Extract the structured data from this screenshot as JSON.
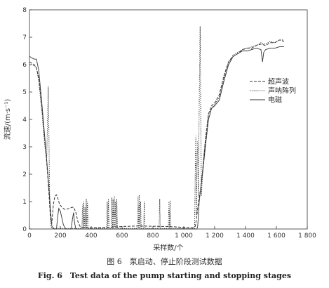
{
  "caption": {
    "cn": "图 6　泵启动、停止阶段测试数据",
    "en": "Fig. 6　Test data of the pump starting and stopping stages"
  },
  "chart_data": {
    "type": "line",
    "title": "",
    "xlabel": "采样数/个",
    "ylabel": "流速/(m·s⁻¹)",
    "xlim": [
      0,
      1800
    ],
    "ylim": [
      0,
      8
    ],
    "x_ticks": [
      0,
      200,
      400,
      600,
      800,
      1000,
      1200,
      1400,
      1600,
      1800
    ],
    "y_ticks": [
      0,
      1,
      2,
      3,
      4,
      5,
      6,
      7,
      8
    ],
    "x_tick_labels": [
      "0",
      "200",
      "400",
      "600",
      "800",
      "1 000",
      "1 200",
      "1 400",
      "1 600",
      "1 800"
    ],
    "y_tick_labels": [
      "0",
      "1",
      "2",
      "3",
      "4",
      "5",
      "6",
      "7",
      "8"
    ],
    "grid": false,
    "legend_position": "right",
    "series": [
      {
        "name": "超声波",
        "style": "dashed",
        "points": [
          [
            0,
            6.1
          ],
          [
            15,
            6.05
          ],
          [
            30,
            6.0
          ],
          [
            45,
            5.9
          ],
          [
            60,
            5.5
          ],
          [
            80,
            4.5
          ],
          [
            100,
            3.2
          ],
          [
            115,
            2.2
          ],
          [
            125,
            1.4
          ],
          [
            135,
            0.5
          ],
          [
            145,
            0.2
          ],
          [
            155,
            0.9
          ],
          [
            165,
            1.2
          ],
          [
            175,
            1.25
          ],
          [
            185,
            1.1
          ],
          [
            195,
            0.9
          ],
          [
            210,
            0.8
          ],
          [
            225,
            0.72
          ],
          [
            235,
            0.72
          ],
          [
            255,
            0.75
          ],
          [
            270,
            0.78
          ],
          [
            285,
            0.8
          ],
          [
            300,
            0.62
          ],
          [
            315,
            0.25
          ],
          [
            330,
            0.07
          ],
          [
            350,
            0.05
          ],
          [
            400,
            0.05
          ],
          [
            500,
            0.06
          ],
          [
            600,
            0.09
          ],
          [
            700,
            0.11
          ],
          [
            800,
            0.1
          ],
          [
            900,
            0.09
          ],
          [
            1000,
            0.06
          ],
          [
            1060,
            0.05
          ],
          [
            1075,
            0.1
          ],
          [
            1085,
            0.5
          ],
          [
            1095,
            1.0
          ],
          [
            1110,
            1.5
          ],
          [
            1125,
            2.3
          ],
          [
            1140,
            3.2
          ],
          [
            1160,
            4.2
          ],
          [
            1180,
            4.5
          ],
          [
            1200,
            4.6
          ],
          [
            1230,
            4.9
          ],
          [
            1260,
            5.6
          ],
          [
            1290,
            6.1
          ],
          [
            1320,
            6.3
          ],
          [
            1350,
            6.4
          ],
          [
            1380,
            6.55
          ],
          [
            1410,
            6.6
          ],
          [
            1440,
            6.6
          ],
          [
            1470,
            6.7
          ],
          [
            1500,
            6.75
          ],
          [
            1530,
            6.7
          ],
          [
            1560,
            6.8
          ],
          [
            1590,
            6.8
          ],
          [
            1620,
            6.9
          ],
          [
            1650,
            6.85
          ]
        ]
      },
      {
        "name": "声呐阵列",
        "style": "dotted",
        "points": [
          [
            0,
            6.0
          ],
          [
            15,
            6.0
          ],
          [
            30,
            5.95
          ],
          [
            45,
            5.9
          ],
          [
            60,
            5.4
          ],
          [
            80,
            4.3
          ],
          [
            100,
            3.0
          ],
          [
            112,
            2.6
          ],
          [
            118,
            4.2
          ],
          [
            122,
            5.2
          ],
          [
            126,
            3.5
          ],
          [
            130,
            1.5
          ],
          [
            136,
            0.1
          ],
          [
            150,
            0.02
          ],
          [
            340,
            0.02
          ],
          [
            344,
            0.9
          ],
          [
            348,
            0.02
          ],
          [
            352,
            1.0
          ],
          [
            356,
            0.02
          ],
          [
            360,
            0.8
          ],
          [
            364,
            0.02
          ],
          [
            368,
            1.1
          ],
          [
            372,
            0.02
          ],
          [
            376,
            1.0
          ],
          [
            380,
            0.02
          ],
          [
            500,
            0.02
          ],
          [
            504,
            1.0
          ],
          [
            508,
            0.02
          ],
          [
            512,
            1.1
          ],
          [
            516,
            0.02
          ],
          [
            530,
            0.02
          ],
          [
            534,
            1.15
          ],
          [
            538,
            0.02
          ],
          [
            542,
            1.1
          ],
          [
            546,
            0.02
          ],
          [
            550,
            1.2
          ],
          [
            554,
            0.02
          ],
          [
            558,
            1.0
          ],
          [
            562,
            0.02
          ],
          [
            566,
            1.1
          ],
          [
            570,
            0.02
          ],
          [
            700,
            0.02
          ],
          [
            704,
            1.2
          ],
          [
            708,
            0.02
          ],
          [
            712,
            1.25
          ],
          [
            716,
            0.02
          ],
          [
            720,
            1.0
          ],
          [
            724,
            0.02
          ],
          [
            740,
            0.02
          ],
          [
            744,
            1.0
          ],
          [
            748,
            0.02
          ],
          [
            840,
            0.02
          ],
          [
            844,
            1.1
          ],
          [
            848,
            0.02
          ],
          [
            900,
            0.02
          ],
          [
            904,
            1.0
          ],
          [
            908,
            0.02
          ],
          [
            912,
            1.05
          ],
          [
            916,
            0.02
          ],
          [
            1070,
            0.02
          ],
          [
            1074,
            2.0
          ],
          [
            1078,
            3.4
          ],
          [
            1082,
            0.5
          ],
          [
            1086,
            2.5
          ],
          [
            1090,
            3.2
          ],
          [
            1094,
            1.2
          ],
          [
            1098,
            3.6
          ],
          [
            1102,
            5.5
          ],
          [
            1106,
            7.4
          ],
          [
            1110,
            4.0
          ],
          [
            1114,
            1.2
          ],
          [
            1125,
            2.4
          ],
          [
            1140,
            3.3
          ],
          [
            1160,
            4.2
          ],
          [
            1180,
            4.4
          ],
          [
            1200,
            4.55
          ],
          [
            1230,
            4.8
          ],
          [
            1260,
            5.5
          ],
          [
            1290,
            6.1
          ],
          [
            1320,
            6.35
          ],
          [
            1350,
            6.45
          ],
          [
            1380,
            6.55
          ],
          [
            1410,
            6.6
          ],
          [
            1440,
            6.65
          ],
          [
            1470,
            6.7
          ],
          [
            1500,
            6.8
          ],
          [
            1530,
            6.75
          ],
          [
            1560,
            6.85
          ],
          [
            1590,
            6.8
          ],
          [
            1620,
            6.9
          ],
          [
            1650,
            6.9
          ]
        ]
      },
      {
        "name": "电磁",
        "style": "solid",
        "points": [
          [
            0,
            6.3
          ],
          [
            15,
            6.25
          ],
          [
            30,
            6.2
          ],
          [
            45,
            6.2
          ],
          [
            60,
            5.8
          ],
          [
            80,
            4.6
          ],
          [
            100,
            3.3
          ],
          [
            115,
            2.3
          ],
          [
            125,
            1.6
          ],
          [
            135,
            0.8
          ],
          [
            145,
            0.1
          ],
          [
            160,
            0.0
          ],
          [
            175,
            0.0
          ],
          [
            182,
            0.4
          ],
          [
            190,
            0.75
          ],
          [
            200,
            0.65
          ],
          [
            210,
            0.4
          ],
          [
            220,
            0.15
          ],
          [
            235,
            0.0
          ],
          [
            270,
            0.0
          ],
          [
            278,
            0.35
          ],
          [
            286,
            0.6
          ],
          [
            292,
            0.25
          ],
          [
            300,
            0.0
          ],
          [
            400,
            0.0
          ],
          [
            1080,
            0.0
          ],
          [
            1085,
            0.0
          ],
          [
            1090,
            0.1
          ],
          [
            1095,
            0.5
          ],
          [
            1100,
            1.0
          ],
          [
            1110,
            1.5
          ],
          [
            1125,
            2.2
          ],
          [
            1140,
            3.0
          ],
          [
            1160,
            4.0
          ],
          [
            1180,
            4.4
          ],
          [
            1200,
            4.5
          ],
          [
            1230,
            4.7
          ],
          [
            1260,
            5.4
          ],
          [
            1290,
            6.0
          ],
          [
            1320,
            6.3
          ],
          [
            1350,
            6.4
          ],
          [
            1380,
            6.5
          ],
          [
            1410,
            6.5
          ],
          [
            1440,
            6.55
          ],
          [
            1470,
            6.6
          ],
          [
            1500,
            6.55
          ],
          [
            1510,
            6.1
          ],
          [
            1518,
            6.45
          ],
          [
            1530,
            6.55
          ],
          [
            1560,
            6.6
          ],
          [
            1590,
            6.6
          ],
          [
            1620,
            6.65
          ],
          [
            1650,
            6.65
          ]
        ]
      }
    ]
  }
}
